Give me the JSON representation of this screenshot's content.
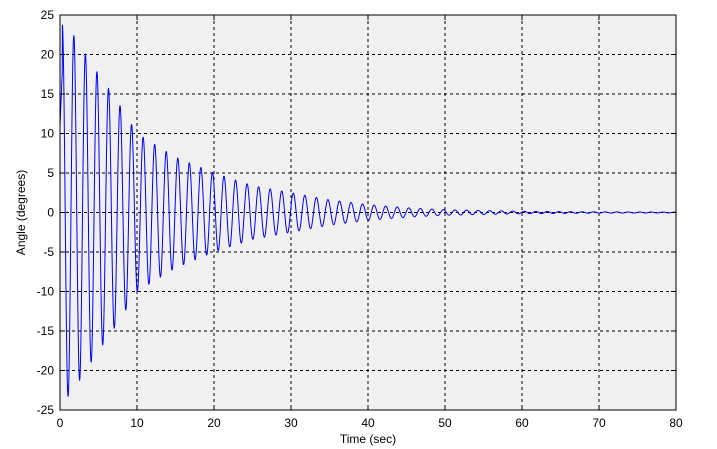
{
  "chart_data": {
    "type": "line",
    "title": "",
    "xlabel": "Time (sec)",
    "ylabel": "Angle (degrees)",
    "xlim": [
      0,
      80
    ],
    "ylim": [
      -25,
      25
    ],
    "xticks": [
      0,
      10,
      20,
      30,
      40,
      50,
      60,
      70,
      80
    ],
    "yticks": [
      25,
      20,
      15,
      10,
      5,
      0,
      -5,
      -10,
      -15,
      -20,
      -25
    ],
    "grid": true,
    "grid_style": "dashed",
    "background": "#f0f0f0",
    "line_color": "#0000ff",
    "series": [
      {
        "signal": "damped oscillation",
        "period_sec": 1.5,
        "amplitude_envelope": [
          {
            "t": 0,
            "amp": 24
          },
          {
            "t": 1.4,
            "amp": 23
          },
          {
            "t": 3,
            "amp": 20.5
          },
          {
            "t": 5,
            "amp": 17.5
          },
          {
            "t": 7.5,
            "amp": 14
          },
          {
            "t": 10,
            "amp": 10
          },
          {
            "t": 12.5,
            "amp": 8.5
          },
          {
            "t": 15,
            "amp": 7
          },
          {
            "t": 20,
            "amp": 5
          },
          {
            "t": 25,
            "amp": 3.4
          },
          {
            "t": 30,
            "amp": 2.5
          },
          {
            "t": 35,
            "amp": 1.6
          },
          {
            "t": 40,
            "amp": 1
          },
          {
            "t": 45,
            "amp": 0.6
          },
          {
            "t": 50,
            "amp": 0.35
          },
          {
            "t": 60,
            "amp": 0.15
          },
          {
            "t": 70,
            "amp": 0.08
          },
          {
            "t": 80,
            "amp": 0.05
          }
        ],
        "points": [
          {
            "t": 0,
            "y": 11
          },
          {
            "t": 0.3,
            "y": 18
          },
          {
            "t": 0.75,
            "y": -24
          },
          {
            "t": 1.5,
            "y": 23
          },
          {
            "t": 2.25,
            "y": -22
          },
          {
            "t": 3.0,
            "y": 20.5
          },
          {
            "t": 4.5,
            "y": 18
          },
          {
            "t": 6.0,
            "y": 16
          },
          {
            "t": 7.5,
            "y": 14
          },
          {
            "t": 9.0,
            "y": 12
          },
          {
            "t": 10.5,
            "y": 10
          },
          {
            "t": 15,
            "y": 7
          },
          {
            "t": 20,
            "y": 5
          },
          {
            "t": 30,
            "y": 2.5
          },
          {
            "t": 40,
            "y": 1
          },
          {
            "t": 50,
            "y": 0.35
          },
          {
            "t": 80,
            "y": 0
          }
        ]
      }
    ]
  }
}
